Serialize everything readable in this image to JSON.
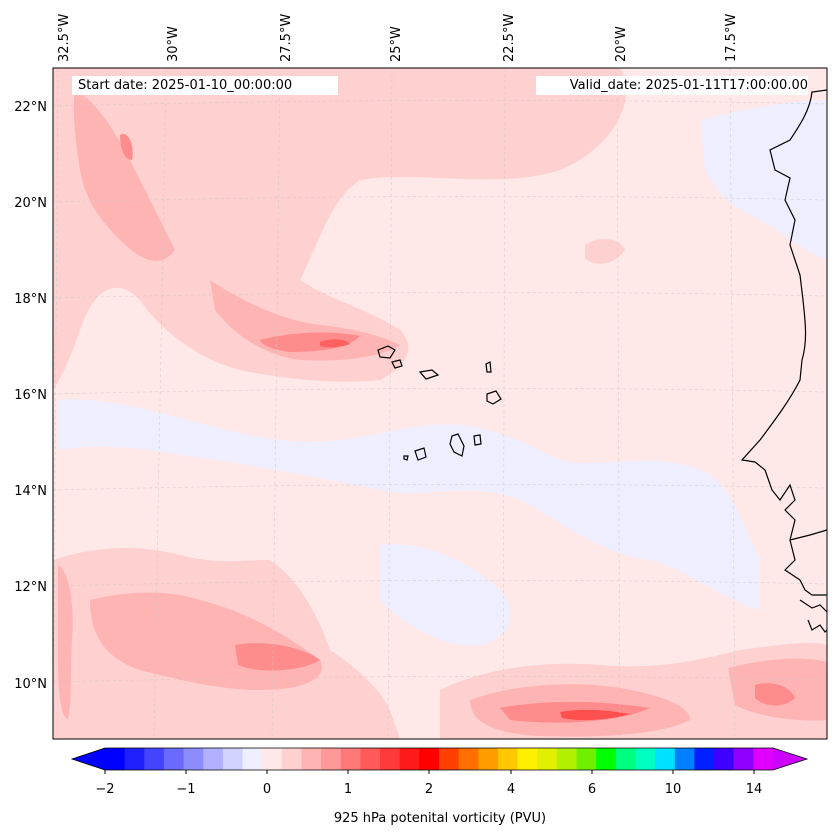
{
  "header": {
    "start_date": "Start date: 2025-01-10_00:00:00",
    "valid_date": "Valid_date: 2025-01-11T17:00:00.00"
  },
  "axes": {
    "longitude_labels": [
      "32.5°W",
      "30°W",
      "27.5°W",
      "25°W",
      "22.5°W",
      "20°W",
      "17.5°W"
    ],
    "latitude_labels": [
      "22°N",
      "20°N",
      "18°N",
      "16°N",
      "14°N",
      "12°N",
      "10°N"
    ]
  },
  "colorbar": {
    "label": "925 hPa potenital vorticity (PVU)",
    "tick_labels": [
      "−2",
      "−1",
      "0",
      "1",
      "2",
      "4",
      "6",
      "10",
      "14"
    ],
    "colors": [
      "#0000ff",
      "#2020ff",
      "#4444ff",
      "#6a6aff",
      "#8c8cff",
      "#b0b0ff",
      "#d2d2ff",
      "#eeeeff",
      "#ffe8e8",
      "#ffd0d0",
      "#ffb4b4",
      "#ff9898",
      "#ff7878",
      "#ff5a5a",
      "#ff3a3a",
      "#ff1a1a",
      "#ff0000",
      "#ff4000",
      "#ff7000",
      "#ff9c00",
      "#ffc800",
      "#fff000",
      "#e0f000",
      "#b0f000",
      "#70f000",
      "#00ff00",
      "#00ff80",
      "#00ffc0",
      "#00e0ff",
      "#0080ff",
      "#0020ff",
      "#4000ff",
      "#9000ff",
      "#e000ff"
    ]
  },
  "map_colors": {
    "ocean_base": "#ffe8e8",
    "negative_light": "#eeeeff",
    "negative_mid": "#c8c8ff",
    "negative_strong": "#9a9aff",
    "positive_1": "#ffd0d0",
    "positive_2": "#ffb4b4",
    "positive_3": "#ff8c8c",
    "positive_4": "#ff5050",
    "coastline": "#000000"
  }
}
